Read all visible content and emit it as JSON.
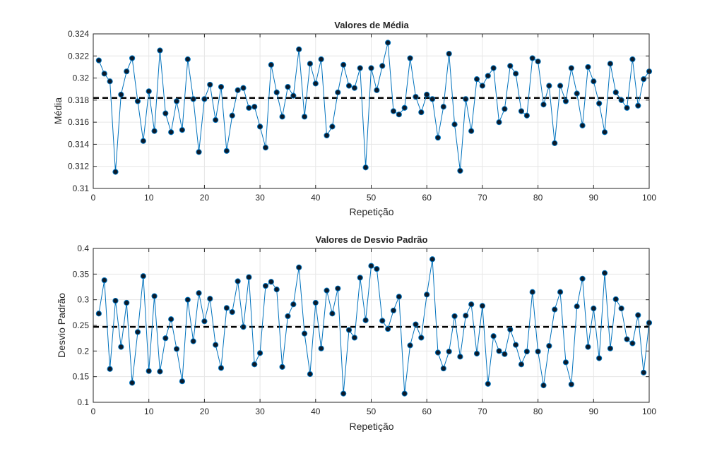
{
  "chart_data": [
    {
      "type": "line",
      "title": "Valores de Média",
      "xlabel": "Repetição",
      "ylabel": "Média",
      "xlim": [
        0,
        100
      ],
      "ylim": [
        0.31,
        0.324
      ],
      "xticks": [
        "0",
        "10",
        "20",
        "30",
        "40",
        "50",
        "60",
        "70",
        "80",
        "90",
        "100"
      ],
      "yticks": [
        "0.31",
        "0.312",
        "0.314",
        "0.316",
        "0.318",
        "0.32",
        "0.322",
        "0.324"
      ],
      "grid": true,
      "reference_line": 0.3182,
      "series": [
        {
          "x": [
            1,
            2,
            3,
            4,
            5,
            6,
            7,
            8,
            9,
            10,
            11,
            12,
            13,
            14,
            15,
            16,
            17,
            18,
            19,
            20,
            21,
            22,
            23,
            24,
            25,
            26,
            27,
            28,
            29,
            30,
            31,
            32,
            33,
            34,
            35,
            36,
            37,
            38,
            39,
            40,
            41,
            42,
            43,
            44,
            45,
            46,
            47,
            48,
            49,
            50,
            51,
            52,
            53,
            54,
            55,
            56,
            57,
            58,
            59,
            60,
            61,
            62,
            63,
            64,
            65,
            66,
            67,
            68,
            69,
            70,
            71,
            72,
            73,
            74,
            75,
            76,
            77,
            78,
            79,
            80,
            81,
            82,
            83,
            84,
            85,
            86,
            87,
            88,
            89,
            90,
            91,
            92,
            93,
            94,
            95,
            96,
            97,
            98,
            99,
            100
          ],
          "values": [
            0.3216,
            0.3204,
            0.3197,
            0.3115,
            0.3185,
            0.3206,
            0.3218,
            0.3179,
            0.3143,
            0.3188,
            0.3152,
            0.3225,
            0.3168,
            0.3151,
            0.3179,
            0.3153,
            0.3217,
            0.3181,
            0.3133,
            0.3181,
            0.3194,
            0.3162,
            0.3192,
            0.3134,
            0.3166,
            0.3189,
            0.3191,
            0.3173,
            0.3174,
            0.3156,
            0.3137,
            0.3212,
            0.3187,
            0.3165,
            0.3192,
            0.3184,
            0.3226,
            0.3165,
            0.3213,
            0.3195,
            0.3217,
            0.3148,
            0.3156,
            0.3187,
            0.3212,
            0.3193,
            0.3191,
            0.3209,
            0.3119,
            0.3209,
            0.3189,
            0.3211,
            0.3232,
            0.317,
            0.3167,
            0.3173,
            0.3218,
            0.3183,
            0.3169,
            0.3185,
            0.3181,
            0.3146,
            0.3174,
            0.3222,
            0.3158,
            0.3116,
            0.3181,
            0.3152,
            0.3199,
            0.3193,
            0.3202,
            0.3209,
            0.316,
            0.3172,
            0.3211,
            0.3204,
            0.317,
            0.3166,
            0.3218,
            0.3215,
            0.3176,
            0.3193,
            0.3141,
            0.3193,
            0.3179,
            0.3209,
            0.3186,
            0.3157,
            0.321,
            0.3197,
            0.3177,
            0.3151,
            0.3213,
            0.3187,
            0.318,
            0.3173,
            0.3217,
            0.3175,
            0.3199,
            0.3206
          ]
        }
      ]
    },
    {
      "type": "line",
      "title": "Valores de Desvio Padrão",
      "xlabel": "Repetição",
      "ylabel": "Desvio Padrão",
      "xlim": [
        0,
        100
      ],
      "ylim": [
        0.1,
        0.4
      ],
      "xticks": [
        "0",
        "10",
        "20",
        "30",
        "40",
        "50",
        "60",
        "70",
        "80",
        "90",
        "100"
      ],
      "yticks": [
        "0.1",
        "0.15",
        "0.2",
        "0.25",
        "0.3",
        "0.35",
        "0.4"
      ],
      "grid": true,
      "reference_line": 0.247,
      "series": [
        {
          "x": [
            1,
            2,
            3,
            4,
            5,
            6,
            7,
            8,
            9,
            10,
            11,
            12,
            13,
            14,
            15,
            16,
            17,
            18,
            19,
            20,
            21,
            22,
            23,
            24,
            25,
            26,
            27,
            28,
            29,
            30,
            31,
            32,
            33,
            34,
            35,
            36,
            37,
            38,
            39,
            40,
            41,
            42,
            43,
            44,
            45,
            46,
            47,
            48,
            49,
            50,
            51,
            52,
            53,
            54,
            55,
            56,
            57,
            58,
            59,
            60,
            61,
            62,
            63,
            64,
            65,
            66,
            67,
            68,
            69,
            70,
            71,
            72,
            73,
            74,
            75,
            76,
            77,
            78,
            79,
            80,
            81,
            82,
            83,
            84,
            85,
            86,
            87,
            88,
            89,
            90,
            91,
            92,
            93,
            94,
            95,
            96,
            97,
            98,
            99,
            100
          ],
          "values": [
            0.273,
            0.338,
            0.165,
            0.298,
            0.208,
            0.294,
            0.138,
            0.237,
            0.346,
            0.161,
            0.307,
            0.16,
            0.225,
            0.262,
            0.204,
            0.141,
            0.3,
            0.219,
            0.313,
            0.258,
            0.302,
            0.212,
            0.167,
            0.284,
            0.276,
            0.336,
            0.247,
            0.344,
            0.174,
            0.196,
            0.327,
            0.335,
            0.32,
            0.169,
            0.268,
            0.291,
            0.363,
            0.234,
            0.155,
            0.294,
            0.205,
            0.318,
            0.273,
            0.322,
            0.117,
            0.241,
            0.226,
            0.343,
            0.26,
            0.366,
            0.36,
            0.259,
            0.243,
            0.279,
            0.306,
            0.117,
            0.211,
            0.252,
            0.226,
            0.31,
            0.379,
            0.197,
            0.166,
            0.199,
            0.268,
            0.189,
            0.269,
            0.291,
            0.195,
            0.288,
            0.136,
            0.229,
            0.2,
            0.194,
            0.242,
            0.212,
            0.174,
            0.199,
            0.315,
            0.199,
            0.133,
            0.21,
            0.281,
            0.315,
            0.178,
            0.135,
            0.287,
            0.341,
            0.208,
            0.283,
            0.186,
            0.352,
            0.205,
            0.301,
            0.283,
            0.223,
            0.215,
            0.27,
            0.158,
            0.255
          ]
        }
      ]
    }
  ],
  "colors": {
    "line": "#0072bd",
    "marker_fill": "#0b1a2a",
    "marker_edge": "#0072bd",
    "reference_line": "#000000",
    "grid": "#e6e6e6",
    "axis": "#262626"
  }
}
